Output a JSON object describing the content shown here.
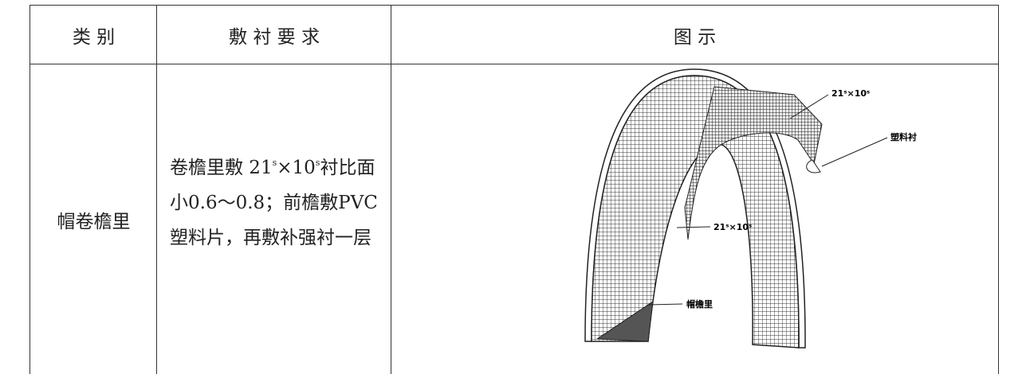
{
  "table": {
    "header": [
      "类 别",
      "敷 衬 要 求",
      "图 示"
    ],
    "rows": [
      {
        "category": "帽卷檐里",
        "requirement": [
          "卷檐里敷 21",
          "s",
          "×10",
          "s",
          "衬比面小0.6～0.8；前檐敷PVC塑料片，再敷补强衬一层"
        ],
        "figure_labels": [
          "21ˢ×10ˢ",
          "塑料衬",
          "21ˢ×10ˢ",
          "帽檐里"
        ]
      }
    ]
  }
}
